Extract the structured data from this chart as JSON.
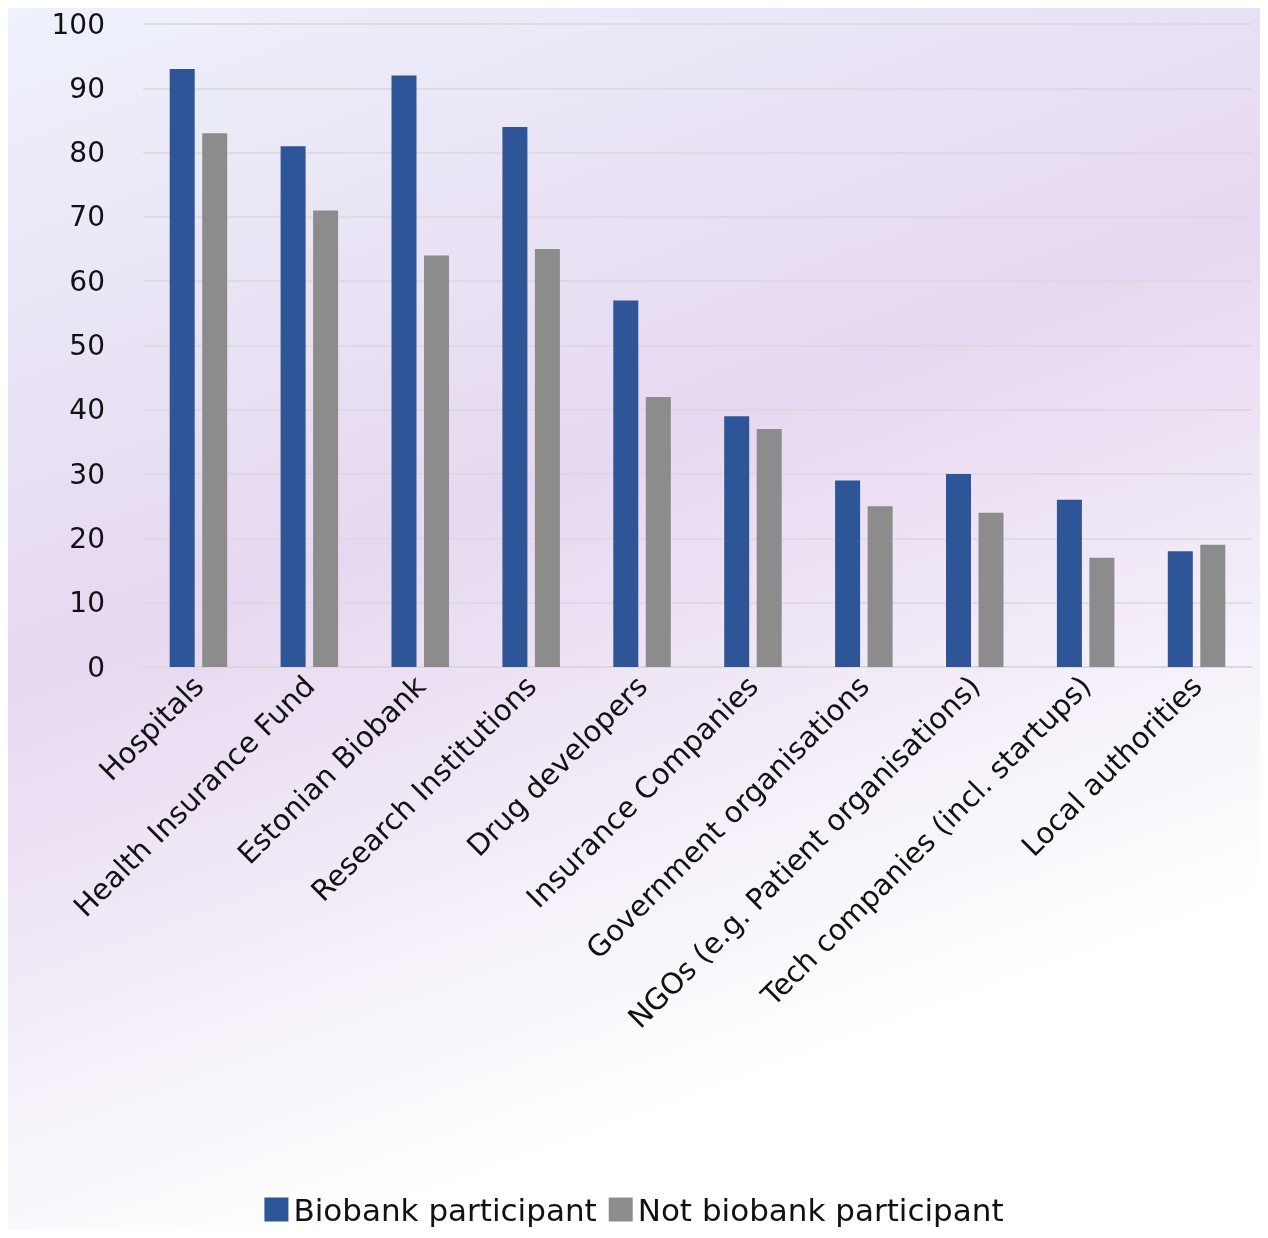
{
  "chart_data": {
    "type": "bar",
    "categories": [
      "Hospitals",
      "Health Insurance Fund",
      "Estonian Biobank",
      "Research Institutions",
      "Drug developers",
      "Insurance Companies",
      "Government organisations",
      "NGOs (e.g. Patient organisations)",
      "Tech companies (incl. startups)",
      "Local authorities"
    ],
    "series": [
      {
        "name": "Biobank participant",
        "color": "#2e5597",
        "values": [
          93,
          81,
          92,
          84,
          57,
          39,
          29,
          30,
          26,
          18
        ]
      },
      {
        "name": "Not biobank participant",
        "color": "#8c8c8c",
        "values": [
          83,
          71,
          64,
          65,
          42,
          37,
          25,
          24,
          17,
          19
        ]
      }
    ],
    "ylim": [
      0,
      100
    ],
    "yticks": [
      0,
      10,
      20,
      30,
      40,
      50,
      60,
      70,
      80,
      90,
      100
    ],
    "grid": "y",
    "legend": "bottom"
  }
}
